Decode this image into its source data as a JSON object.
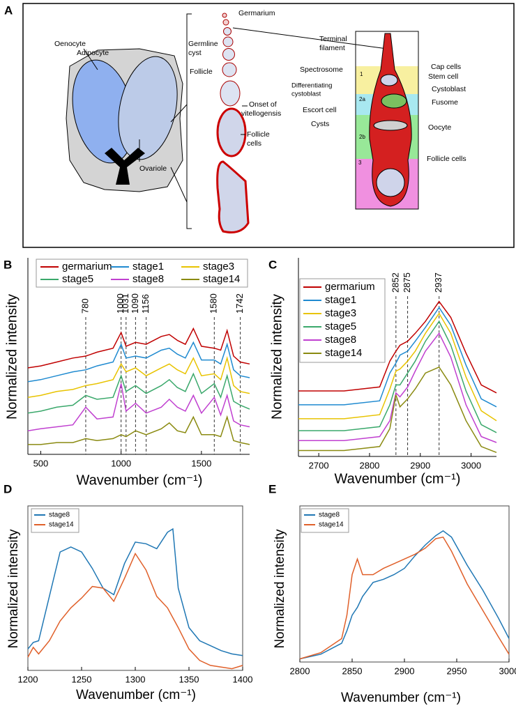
{
  "panel_a": {
    "label": "A",
    "labels": [
      "Oenocyte",
      "Adipocyte",
      "Ovariole",
      "Germarium",
      "Germline",
      "cyst",
      "Follicle",
      "Onset of",
      "vitellogensis",
      "Follicle",
      "cells",
      "Terminal",
      "filament",
      "Spectrosome",
      "Cap cells",
      "Stem cell",
      "Differentiating",
      "cystoblast",
      "Cystoblast",
      "Escort cell",
      "Fusome",
      "Cysts",
      "Oocyte",
      "Follicle cells",
      "1",
      "2a",
      "2b",
      "3"
    ]
  },
  "chart_data": [
    {
      "type": "line",
      "panel_label": "B",
      "xlabel": "Wavenumber (cm⁻¹)",
      "ylabel": "Normalized intensity",
      "x": [
        420,
        500,
        600,
        700,
        780,
        850,
        950,
        1000,
        1031,
        1090,
        1156,
        1250,
        1300,
        1350,
        1400,
        1450,
        1500,
        1580,
        1620,
        1660,
        1700,
        1742,
        1800
      ],
      "series": [
        {
          "name": "germarium",
          "color": "#c00000",
          "values": [
            4.4,
            4.5,
            4.7,
            4.9,
            5.0,
            5.2,
            5.4,
            6.2,
            5.5,
            5.7,
            5.6,
            6.0,
            6.1,
            5.8,
            5.6,
            6.4,
            5.5,
            5.4,
            5.3,
            6.3,
            5.0,
            4.7,
            4.6
          ]
        },
        {
          "name": "stage1",
          "color": "#1f8ad0",
          "values": [
            3.7,
            3.8,
            4.0,
            4.2,
            4.3,
            4.5,
            4.7,
            5.6,
            4.9,
            5.0,
            4.9,
            5.3,
            5.4,
            5.1,
            4.9,
            5.7,
            4.8,
            4.8,
            4.6,
            5.6,
            4.3,
            4.0,
            3.9
          ]
        },
        {
          "name": "stage3",
          "color": "#e8c300",
          "values": [
            2.9,
            3.0,
            3.2,
            3.3,
            3.5,
            3.6,
            3.8,
            4.6,
            4.2,
            4.4,
            4.0,
            4.4,
            4.6,
            4.3,
            4.1,
            4.9,
            4.0,
            4.1,
            3.8,
            4.9,
            3.5,
            3.2,
            3.1
          ]
        },
        {
          "name": "stage5",
          "color": "#3aa86b",
          "values": [
            2.1,
            2.2,
            2.4,
            2.5,
            3.0,
            2.8,
            2.9,
            4.0,
            3.2,
            3.5,
            3.1,
            3.5,
            3.8,
            3.4,
            3.2,
            4.1,
            3.1,
            3.6,
            2.9,
            4.0,
            2.7,
            2.5,
            2.3
          ]
        },
        {
          "name": "stage8",
          "color": "#c040d0",
          "values": [
            1.2,
            1.3,
            1.4,
            1.5,
            2.4,
            1.8,
            1.9,
            3.6,
            2.2,
            2.6,
            2.1,
            2.4,
            2.8,
            2.4,
            2.2,
            3.0,
            2.1,
            2.9,
            2.0,
            3.0,
            1.7,
            1.5,
            1.4
          ]
        },
        {
          "name": "stage14",
          "color": "#8a8a10",
          "values": [
            0.5,
            0.5,
            0.6,
            0.6,
            0.8,
            0.7,
            0.8,
            1.0,
            0.9,
            1.2,
            1.0,
            1.3,
            1.6,
            1.2,
            1.1,
            1.9,
            1.0,
            1.0,
            0.9,
            1.9,
            0.7,
            0.6,
            0.5
          ]
        }
      ],
      "vlines": [
        780,
        1000,
        1031,
        1090,
        1156,
        1580,
        1742
      ],
      "xlim": [
        420,
        1800
      ],
      "xticks": [
        500,
        1000,
        1500
      ],
      "ylim": [
        0,
        10
      ]
    },
    {
      "type": "line",
      "panel_label": "C",
      "xlabel": "Wavenumber (cm⁻¹)",
      "ylabel": "Normalized intensity",
      "x": [
        2660,
        2750,
        2820,
        2840,
        2852,
        2860,
        2875,
        2890,
        2910,
        2937,
        2960,
        2990,
        3020,
        3050
      ],
      "series": [
        {
          "name": "germarium",
          "color": "#c00000",
          "values": [
            3.3,
            3.3,
            3.5,
            4.8,
            5.3,
            5.6,
            5.8,
            6.2,
            6.8,
            7.8,
            7.0,
            5.2,
            3.6,
            3.2
          ]
        },
        {
          "name": "stage1",
          "color": "#1f8ad0",
          "values": [
            2.6,
            2.6,
            2.8,
            4.2,
            4.7,
            5.1,
            5.3,
            5.8,
            6.5,
            7.5,
            6.6,
            4.6,
            2.9,
            2.5
          ]
        },
        {
          "name": "stage3",
          "color": "#e8c300",
          "values": [
            1.9,
            1.9,
            2.1,
            3.4,
            4.3,
            4.4,
            4.8,
            5.3,
            6.2,
            7.2,
            6.2,
            4.0,
            2.3,
            1.8
          ]
        },
        {
          "name": "stage5",
          "color": "#3aa86b",
          "values": [
            1.3,
            1.3,
            1.5,
            2.6,
            3.6,
            3.6,
            4.2,
            4.8,
            5.8,
            6.8,
            5.6,
            3.3,
            1.6,
            1.2
          ]
        },
        {
          "name": "stage8",
          "color": "#c040d0",
          "values": [
            0.8,
            0.8,
            1.0,
            1.8,
            3.2,
            3.0,
            3.5,
            4.3,
            5.3,
            6.2,
            5.0,
            2.6,
            1.0,
            0.7
          ]
        },
        {
          "name": "stage14",
          "color": "#8a8a10",
          "values": [
            0.3,
            0.3,
            0.5,
            1.4,
            3.1,
            2.5,
            2.9,
            3.4,
            4.2,
            4.5,
            3.6,
            1.8,
            0.5,
            0.2
          ]
        }
      ],
      "vlines": [
        2852,
        2875,
        2937
      ],
      "xlim": [
        2660,
        3050
      ],
      "xticks": [
        2700,
        2800,
        2900,
        3000
      ],
      "ylim": [
        0,
        10
      ]
    },
    {
      "type": "line",
      "panel_label": "D",
      "xlabel": "Wavenumber (cm⁻¹)",
      "ylabel": "Normalized intensity",
      "x": [
        1200,
        1205,
        1210,
        1220,
        1230,
        1240,
        1250,
        1260,
        1270,
        1280,
        1290,
        1300,
        1310,
        1320,
        1330,
        1335,
        1340,
        1350,
        1360,
        1370,
        1380,
        1390,
        1400
      ],
      "series": [
        {
          "name": "stage8",
          "color": "#1f77b4",
          "values": [
            1.3,
            1.7,
            1.8,
            4.5,
            7.2,
            7.5,
            7.2,
            6.2,
            5.0,
            4.6,
            6.5,
            7.8,
            7.7,
            7.4,
            8.4,
            8.6,
            5.0,
            2.6,
            1.8,
            1.5,
            1.2,
            1.0,
            0.9
          ]
        },
        {
          "name": "stage14",
          "color": "#e0602a",
          "values": [
            0.8,
            1.4,
            1.0,
            1.8,
            3.0,
            3.8,
            4.4,
            5.1,
            5.0,
            4.2,
            5.6,
            7.1,
            6.1,
            4.5,
            3.8,
            3.2,
            2.6,
            1.3,
            0.6,
            0.3,
            0.2,
            0.1,
            0.3
          ]
        }
      ],
      "xlim": [
        1200,
        1400
      ],
      "xticks": [
        1200,
        1250,
        1300,
        1350,
        1400
      ],
      "ylim": [
        0,
        10
      ]
    },
    {
      "type": "line",
      "panel_label": "E",
      "xlabel": "Wavenumber (cm⁻¹)",
      "ylabel": "Normalized intensity",
      "x": [
        2800,
        2820,
        2840,
        2845,
        2850,
        2855,
        2860,
        2870,
        2880,
        2890,
        2900,
        2910,
        2920,
        2930,
        2937,
        2945,
        2960,
        2975,
        2990,
        3000
      ],
      "series": [
        {
          "name": "stage8",
          "color": "#1f77b4",
          "values": [
            0.2,
            0.5,
            1.2,
            2.0,
            3.0,
            3.5,
            4.2,
            5.1,
            5.3,
            5.6,
            6.0,
            6.8,
            7.5,
            8.1,
            8.4,
            8.0,
            6.2,
            4.6,
            2.8,
            1.5
          ]
        },
        {
          "name": "stage14",
          "color": "#e0602a",
          "values": [
            0.2,
            0.6,
            1.5,
            3.0,
            5.6,
            6.6,
            5.6,
            5.6,
            6.0,
            6.3,
            6.6,
            6.9,
            7.3,
            7.9,
            8.0,
            7.1,
            5.0,
            3.3,
            1.6,
            0.5
          ]
        }
      ],
      "xlim": [
        2800,
        3000
      ],
      "xticks": [
        2800,
        2850,
        2900,
        2950,
        3000
      ],
      "ylim": [
        0,
        10
      ]
    }
  ]
}
